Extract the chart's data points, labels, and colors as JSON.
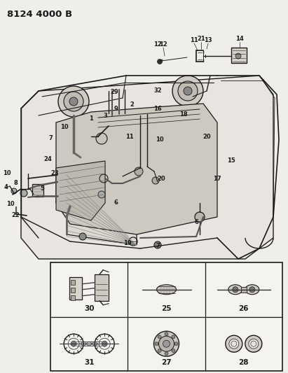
{
  "title": "8124 4000 B",
  "bg_color": "#f0eeeb",
  "fig_width": 4.11,
  "fig_height": 5.33,
  "dpi": 100,
  "detail_grid": {
    "labels": [
      "30",
      "25",
      "26",
      "31",
      "27",
      "28"
    ]
  },
  "lc": "#1a1a1a",
  "lw_main": 0.9,
  "lw_thin": 0.5,
  "lw_bold": 1.4
}
